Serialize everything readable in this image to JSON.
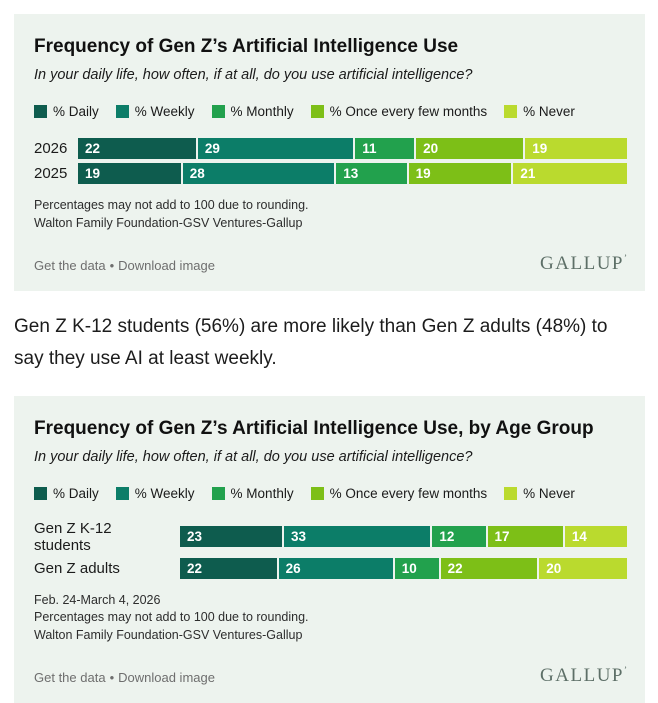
{
  "palette": {
    "series": [
      "#0e5c4e",
      "#0c7d68",
      "#22a14d",
      "#7dbf17",
      "#bada2e"
    ],
    "card_bg": "#edf3ee",
    "link_color": "#6e6e6e",
    "logo_color": "#5d6f67"
  },
  "footer": {
    "get_data": "Get the data",
    "separator": "•",
    "download": "Download image",
    "logo": "GALLUP",
    "logo_mark": "’"
  },
  "paragraph": "Gen Z K-12 students (56%) are more likely than Gen Z adults (48%) to say they use AI at least weekly.",
  "chart_data": [
    {
      "type": "bar",
      "orientation": "horizontal-stacked",
      "title": "Frequency of Gen Z’s Artificial Intelligence Use",
      "subtitle": "In your daily life, how often, if at all, do you use artificial intelligence?",
      "categories": [
        "2026",
        "2025"
      ],
      "series": [
        {
          "name": "% Daily",
          "values": [
            22,
            19
          ]
        },
        {
          "name": "% Weekly",
          "values": [
            29,
            28
          ]
        },
        {
          "name": "% Monthly",
          "values": [
            11,
            13
          ]
        },
        {
          "name": "% Once every few months",
          "values": [
            20,
            19
          ]
        },
        {
          "name": "% Never",
          "values": [
            19,
            21
          ]
        }
      ],
      "xlim": [
        0,
        100
      ],
      "unit": "percent",
      "legend_position": "top",
      "data_labels": true,
      "grid": false,
      "notes": [
        "Percentages may not add to 100 due to rounding.",
        "Walton Family Foundation-GSV Ventures-Gallup"
      ]
    },
    {
      "type": "bar",
      "orientation": "horizontal-stacked",
      "title": "Frequency of Gen Z’s Artificial Intelligence Use, by Age Group",
      "subtitle": "In your daily life, how often, if at all, do you use artificial intelligence?",
      "categories": [
        "Gen Z K-12 students",
        "Gen Z adults"
      ],
      "series": [
        {
          "name": "% Daily",
          "values": [
            23,
            22
          ]
        },
        {
          "name": "% Weekly",
          "values": [
            33,
            26
          ]
        },
        {
          "name": "% Monthly",
          "values": [
            12,
            10
          ]
        },
        {
          "name": "% Once every few months",
          "values": [
            17,
            22
          ]
        },
        {
          "name": "% Never",
          "values": [
            14,
            20
          ]
        }
      ],
      "xlim": [
        0,
        100
      ],
      "unit": "percent",
      "legend_position": "top",
      "data_labels": true,
      "grid": false,
      "notes": [
        "Feb. 24-March 4, 2026",
        "Percentages may not add to 100 due to rounding.",
        "Walton Family Foundation-GSV Ventures-Gallup"
      ]
    }
  ]
}
